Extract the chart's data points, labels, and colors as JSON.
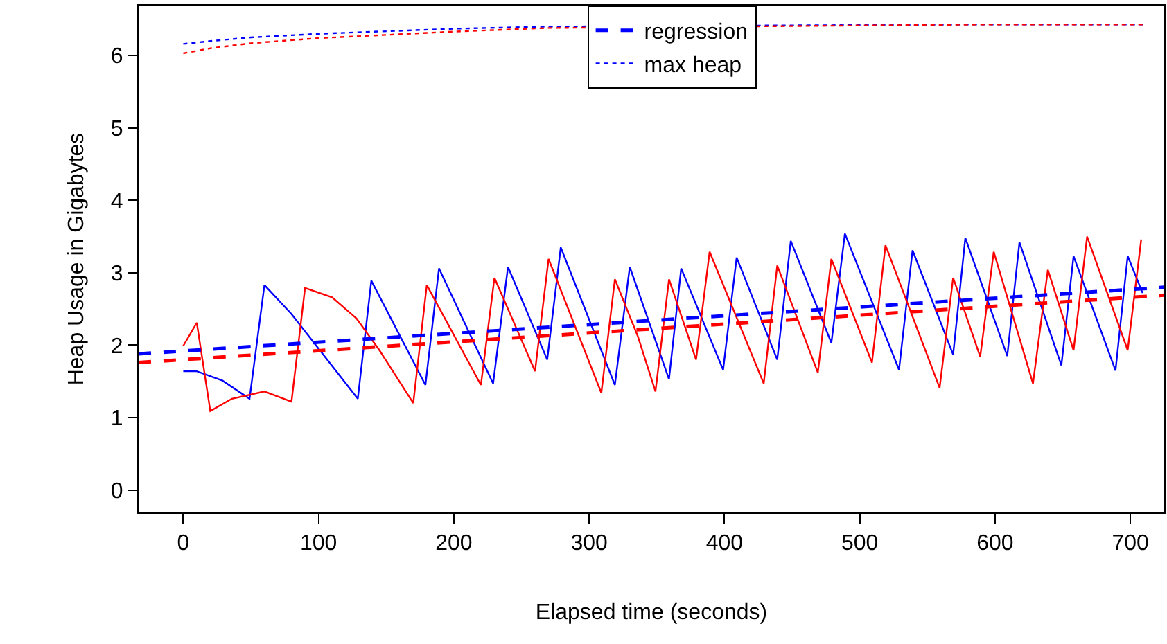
{
  "chart_data": {
    "type": "line",
    "xlabel": "Elapsed time (seconds)",
    "ylabel": "Heap Usage in Gigabytes",
    "xlim": [
      -33,
      725
    ],
    "ylim": [
      -0.31,
      6.69
    ],
    "xticks": [
      0,
      100,
      200,
      300,
      400,
      500,
      600,
      700
    ],
    "yticks": [
      0,
      1,
      2,
      3,
      4,
      5,
      6
    ],
    "legend": "top",
    "marker": "none",
    "series": [
      {
        "color": "#0000ff",
        "line_style": "solid",
        "x": [
          0,
          10,
          29,
          49,
          60,
          80,
          129,
          139,
          179,
          189,
          229,
          240,
          269,
          279,
          319,
          330,
          359,
          368,
          399,
          409,
          439,
          449,
          479,
          489,
          529,
          539,
          569,
          578,
          609,
          618,
          649,
          658,
          689,
          698,
          709
        ],
        "values": [
          1.64,
          1.64,
          1.51,
          1.26,
          2.83,
          2.43,
          1.26,
          2.89,
          1.45,
          3.06,
          1.47,
          3.08,
          1.8,
          3.35,
          1.45,
          3.08,
          1.53,
          3.06,
          1.66,
          3.21,
          1.8,
          3.44,
          2.03,
          3.54,
          1.66,
          3.31,
          1.87,
          3.48,
          1.85,
          3.42,
          1.72,
          3.23,
          1.65,
          3.23,
          2.72
        ]
      },
      {
        "color": "#ff0000",
        "line_style": "solid",
        "x": [
          0,
          10,
          20,
          36,
          60,
          80,
          90,
          110,
          128,
          145,
          170,
          180,
          220,
          230,
          260,
          270,
          309,
          319,
          336,
          349,
          359,
          379,
          389,
          429,
          439,
          469,
          479,
          509,
          519,
          559,
          569,
          589,
          599,
          628,
          639,
          658,
          668,
          698,
          708
        ],
        "values": [
          1.99,
          2.31,
          1.09,
          1.26,
          1.36,
          1.22,
          2.79,
          2.66,
          2.37,
          1.93,
          1.2,
          2.83,
          1.45,
          2.93,
          1.64,
          3.19,
          1.34,
          2.91,
          2.12,
          1.36,
          2.91,
          1.8,
          3.29,
          1.47,
          3.1,
          1.62,
          3.19,
          1.76,
          3.38,
          1.41,
          2.93,
          1.84,
          3.29,
          1.47,
          3.04,
          1.93,
          3.5,
          1.93,
          3.46
        ]
      },
      {
        "name": "regression",
        "color": "#0000ff",
        "line_style": "dashed",
        "x": [
          -33,
          725
        ],
        "values": [
          1.88,
          2.8
        ]
      },
      {
        "color": "#ff0000",
        "line_style": "dashed",
        "x": [
          -33,
          725
        ],
        "values": [
          1.76,
          2.69
        ]
      },
      {
        "name": "max heap",
        "color": "#0000ff",
        "line_style": "dotted",
        "x": [
          0,
          20,
          50,
          100,
          200,
          270,
          600,
          710
        ],
        "values": [
          6.16,
          6.2,
          6.25,
          6.3,
          6.37,
          6.4,
          6.43,
          6.43
        ]
      },
      {
        "color": "#ff0000",
        "line_style": "dotted",
        "x": [
          0,
          20,
          50,
          100,
          200,
          270,
          600,
          710
        ],
        "values": [
          6.03,
          6.1,
          6.17,
          6.24,
          6.33,
          6.38,
          6.43,
          6.43
        ]
      }
    ]
  }
}
